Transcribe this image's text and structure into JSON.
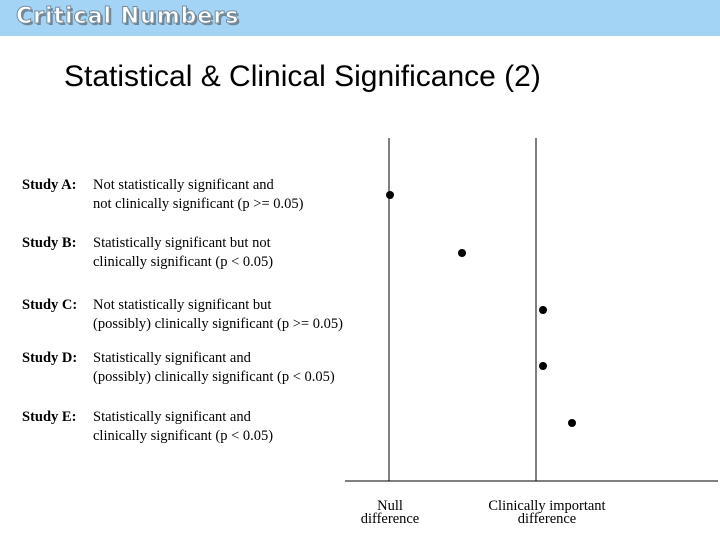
{
  "banner": {
    "title": "Critical Numbers",
    "color": "#a3d3f5"
  },
  "slide": {
    "title": "Statistical & Clinical Significance (2)"
  },
  "studies": [
    {
      "label": "Study A:",
      "line1": "Not statistically significant and",
      "line2": "not clinically significant (p >= 0.05)"
    },
    {
      "label": "Study B:",
      "line1": "Statistically significant but not",
      "line2": "clinically significant (p < 0.05)"
    },
    {
      "label": "Study C:",
      "line1": "Not statistically significant but",
      "line2": "(possibly) clinically significant (p >= 0.05)"
    },
    {
      "label": "Study D:",
      "line1": "Statistically significant and",
      "line2": "(possibly) clinically significant (p < 0.05)"
    },
    {
      "label": "Study E:",
      "line1": "Statistically significant and",
      "line2": "clinically significant (p < 0.05)"
    }
  ],
  "axis": {
    "null_line1": "Null",
    "null_line2": "difference",
    "clinical_line1": "Clinically important",
    "clinical_line2": "difference"
  }
}
